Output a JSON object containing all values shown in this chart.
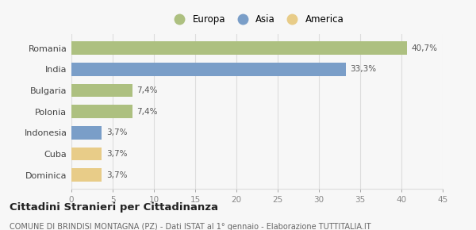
{
  "categories": [
    "Dominica",
    "Cuba",
    "Indonesia",
    "Polonia",
    "Bulgaria",
    "India",
    "Romania"
  ],
  "values": [
    3.7,
    3.7,
    3.7,
    7.4,
    7.4,
    33.3,
    40.7
  ],
  "labels": [
    "3,7%",
    "3,7%",
    "3,7%",
    "7,4%",
    "7,4%",
    "33,3%",
    "40,7%"
  ],
  "colors": [
    "#e8cc88",
    "#e8cc88",
    "#7a9ec8",
    "#adc080",
    "#adc080",
    "#7a9ec8",
    "#adc080"
  ],
  "legend": [
    {
      "label": "Europa",
      "color": "#adc080"
    },
    {
      "label": "Asia",
      "color": "#7a9ec8"
    },
    {
      "label": "America",
      "color": "#e8cc88"
    }
  ],
  "xlim": [
    0,
    45
  ],
  "xticks": [
    0,
    5,
    10,
    15,
    20,
    25,
    30,
    35,
    40,
    45
  ],
  "title": "Cittadini Stranieri per Cittadinanza",
  "subtitle": "COMUNE DI BRINDISI MONTAGNA (PZ) - Dati ISTAT al 1° gennaio - Elaborazione TUTTITALIA.IT",
  "bg_color": "#f7f7f7",
  "grid_color": "#dddddd",
  "label_color": "#555555",
  "tick_color": "#888888"
}
